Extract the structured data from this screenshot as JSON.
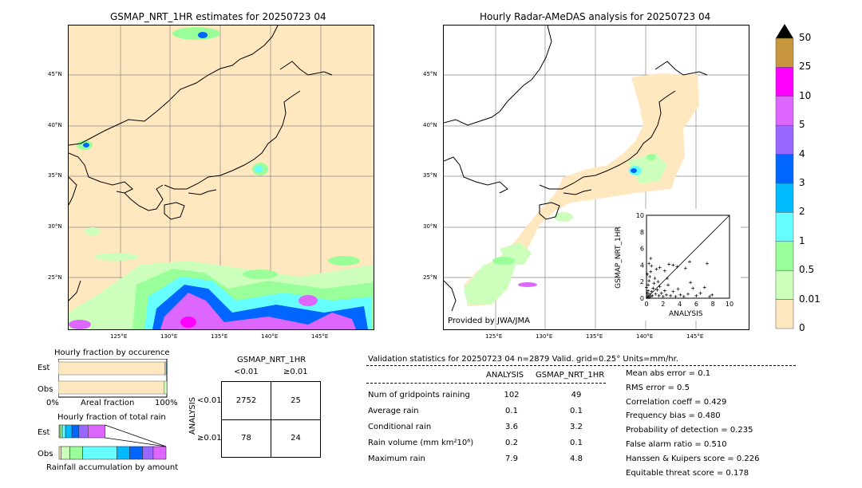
{
  "left_map": {
    "title": "GSMAP_NRT_1HR estimates for 20250723 04",
    "lat_labels": [
      "45°N",
      "40°N",
      "35°N",
      "30°N",
      "25°N"
    ],
    "lon_labels": [
      "125°E",
      "130°E",
      "135°E",
      "140°E",
      "145°E"
    ]
  },
  "right_map": {
    "title": "Hourly Radar-AMeDAS analysis for 20250723 04",
    "lat_labels": [
      "45°N",
      "40°N",
      "35°N",
      "30°N",
      "25°N"
    ],
    "lon_labels": [
      "125°E",
      "130°E",
      "135°E",
      "140°E",
      "145°E"
    ],
    "credit": "Provided by JWA/JMA"
  },
  "colorbar": {
    "labels": [
      "50",
      "25",
      "10",
      "5",
      "4",
      "3",
      "2",
      "1",
      "0.5",
      "0.01",
      "0"
    ],
    "colors": [
      "#c8963c",
      "#ff00ff",
      "#dd66ff",
      "#9966ff",
      "#0066ff",
      "#00bbff",
      "#66ffff",
      "#99ff99",
      "#ccffbb",
      "#ffe8bf"
    ],
    "top_color": "#000000"
  },
  "scatter": {
    "xlabel": "ANALYSIS",
    "ylabel": "GSMAP_NRT_1HR",
    "ticks": [
      "0",
      "2",
      "4",
      "6",
      "8",
      "10"
    ]
  },
  "occurrence": {
    "title": "Hourly fraction by occurence",
    "row_est": "Est",
    "row_obs": "Obs",
    "axis_left": "0%",
    "axis_mid": "Areal fraction",
    "axis_right": "100%"
  },
  "total_rain": {
    "title": "Hourly fraction of total rain",
    "row_est": "Est",
    "row_obs": "Obs",
    "axis_label": "Rainfall accumulation by amount"
  },
  "contingency": {
    "title": "GSMAP_NRT_1HR",
    "col1": "<0.01",
    "col2": "≥0.01",
    "row_axis": "ANALYSIS",
    "row1": "<0.01",
    "row2": "≥0.01",
    "cells": [
      "2752",
      "25",
      "78",
      "24"
    ]
  },
  "validation": {
    "header": "Validation statistics for 20250723 04  n=2879 Valid. grid=0.25° Units=mm/hr.",
    "col_analysis": "ANALYSIS",
    "col_gsmap": "GSMAP_NRT_1HR",
    "rows": [
      {
        "label": "Num of gridpoints raining",
        "analysis": "102",
        "gsmap": "49"
      },
      {
        "label": "Average rain",
        "analysis": "0.1",
        "gsmap": "0.1"
      },
      {
        "label": "Conditional rain",
        "analysis": "3.6",
        "gsmap": "3.2"
      },
      {
        "label": "Rain volume (mm km²10⁶)",
        "analysis": "0.2",
        "gsmap": "0.1"
      },
      {
        "label": "Maximum rain",
        "analysis": "7.9",
        "gsmap": "4.8"
      }
    ],
    "scores": [
      "Mean abs error =    0.1",
      "RMS error =    0.5",
      "Correlation coeff =  0.429",
      "Frequency bias =  0.480",
      "Probability of detection =  0.235",
      "False alarm ratio =  0.510",
      "Hanssen & Kuipers score =  0.226",
      "Equitable threat score =  0.178"
    ]
  },
  "chart_data": [
    {
      "type": "scatter",
      "xlabel": "ANALYSIS",
      "ylabel": "GSMAP_NRT_1HR",
      "xlim": [
        0,
        10
      ],
      "ylim": [
        0,
        10
      ],
      "points": [
        [
          0.1,
          0.1
        ],
        [
          0.2,
          0.3
        ],
        [
          0.3,
          0.1
        ],
        [
          0.4,
          0.5
        ],
        [
          0.5,
          0.2
        ],
        [
          0.6,
          0.8
        ],
        [
          0.7,
          0.3
        ],
        [
          0.8,
          1.2
        ],
        [
          0.2,
          1.6
        ],
        [
          0.3,
          2.1
        ],
        [
          0.4,
          2.6
        ],
        [
          0.5,
          3.2
        ],
        [
          0.6,
          3.9
        ],
        [
          0.3,
          4.2
        ],
        [
          0.9,
          1.8
        ],
        [
          1.0,
          2.4
        ],
        [
          1.1,
          0.5
        ],
        [
          1.3,
          1.0
        ],
        [
          1.5,
          0.3
        ],
        [
          1.6,
          1.4
        ],
        [
          1.8,
          0.6
        ],
        [
          2.0,
          0.2
        ],
        [
          2.2,
          0.9
        ],
        [
          2.4,
          0.4
        ],
        [
          2.6,
          1.6
        ],
        [
          2.9,
          0.3
        ],
        [
          3.2,
          0.8
        ],
        [
          3.5,
          0.2
        ],
        [
          3.8,
          1.1
        ],
        [
          4.1,
          0.4
        ],
        [
          4.5,
          0.2
        ],
        [
          5.0,
          0.5
        ],
        [
          5.3,
          1.9
        ],
        [
          5.6,
          1.2
        ],
        [
          6.0,
          0.3
        ],
        [
          6.5,
          0.6
        ],
        [
          7.0,
          1.3
        ],
        [
          7.6,
          0.2
        ],
        [
          7.9,
          0.4
        ],
        [
          1.2,
          3.5
        ],
        [
          1.6,
          3.7
        ],
        [
          2.2,
          3.3
        ],
        [
          2.7,
          4.1
        ],
        [
          3.2,
          4.0
        ],
        [
          3.7,
          3.8
        ],
        [
          4.7,
          3.6
        ],
        [
          5.2,
          4.4
        ],
        [
          7.3,
          4.2
        ],
        [
          0.1,
          0.6
        ],
        [
          0.2,
          0.9
        ],
        [
          0.0,
          1.3
        ],
        [
          0.1,
          2.9
        ],
        [
          0.5,
          4.8
        ],
        [
          1.4,
          2.0
        ],
        [
          2.5,
          2.4
        ]
      ]
    },
    {
      "type": "bar",
      "title": "Hourly fraction by occurence",
      "categories": [
        "Est",
        "Obs"
      ],
      "series": [
        {
          "values": [
            0.983,
            0.973
          ]
        },
        {
          "values": [
            0.009,
            0.027
          ]
        }
      ]
    },
    {
      "type": "bar",
      "title": "Hourly fraction of total rain",
      "categories": [
        "Est",
        "Obs"
      ],
      "segment_colors": [
        "#ffe8bf",
        "#ccffbb",
        "#99ff99",
        "#66ffff",
        "#00bbff",
        "#0066ff",
        "#9966ff",
        "#dd66ff"
      ],
      "est_segments": [
        0.02,
        0.05,
        0.07,
        0.14,
        0.15,
        0.2,
        0.37
      ],
      "obs_segments": [
        0.02,
        0.08,
        0.12,
        0.32,
        0.12,
        0.12,
        0.1,
        0.12
      ]
    }
  ]
}
